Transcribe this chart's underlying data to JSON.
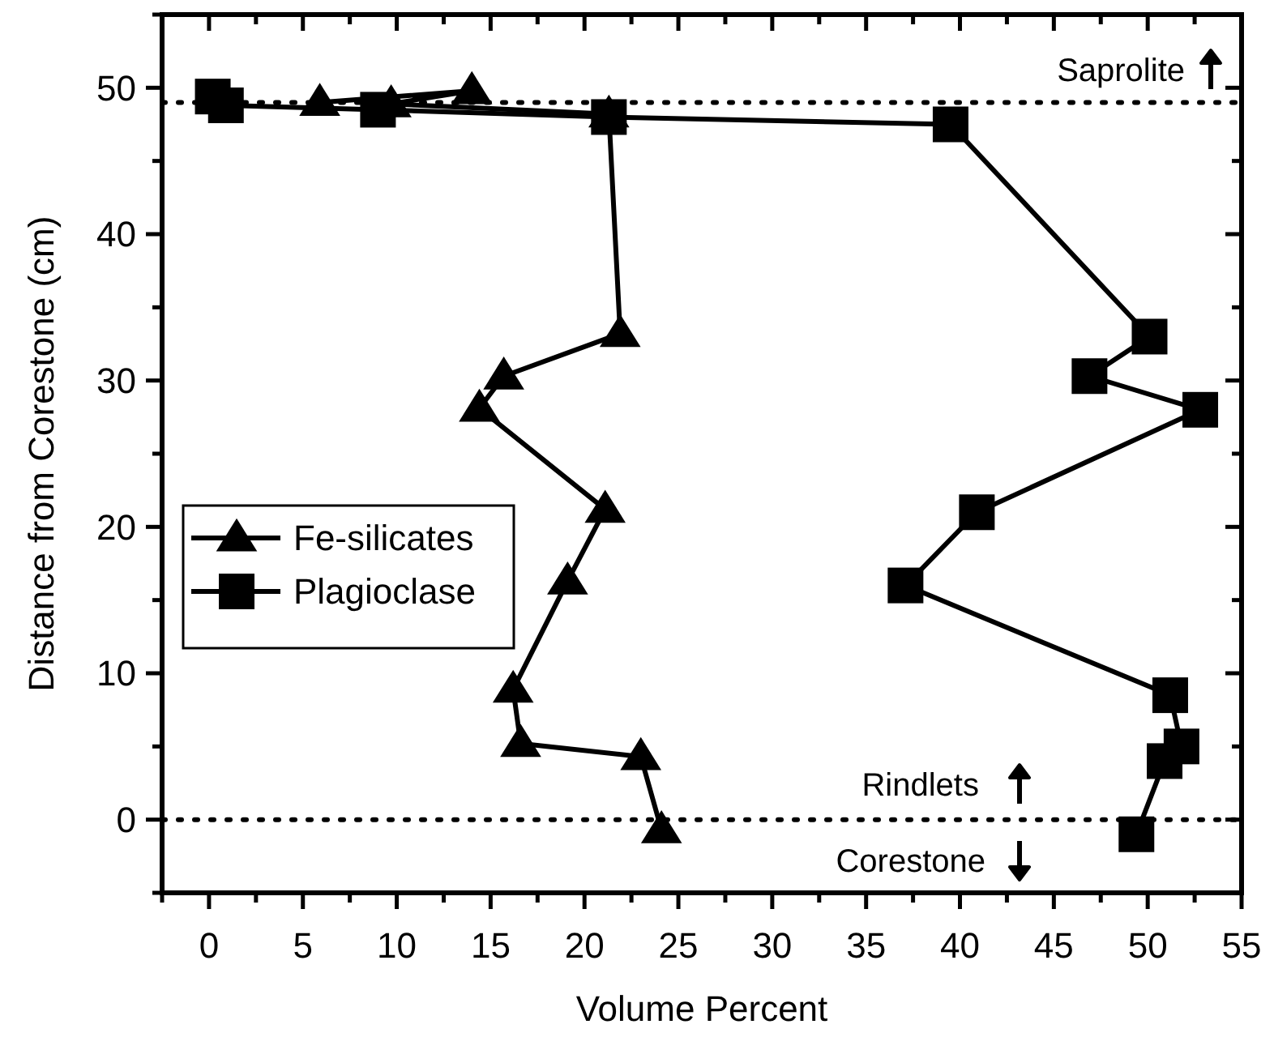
{
  "chart_data": {
    "type": "line",
    "xlabel": "Volume Percent",
    "ylabel": "Distance from Corestone (cm)",
    "xlim": [
      -2.5,
      55
    ],
    "ylim": [
      -5,
      55
    ],
    "xticks": [
      {
        "value": -2.5,
        "label": null
      },
      0,
      {
        "value": 2.5,
        "label": null
      },
      5,
      {
        "value": 7.5,
        "label": null
      },
      10,
      {
        "value": 12.5,
        "label": null
      },
      15,
      {
        "value": 17.5,
        "label": null
      },
      20,
      {
        "value": 22.5,
        "label": null
      },
      25,
      {
        "value": 27.5,
        "label": null
      },
      30,
      {
        "value": 32.5,
        "label": null
      },
      35,
      {
        "value": 37.5,
        "label": null
      },
      40,
      {
        "value": 42.5,
        "label": null
      },
      45,
      {
        "value": 47.5,
        "label": null
      },
      50,
      {
        "value": 52.5,
        "label": null
      },
      55
    ],
    "yticks": [
      {
        "value": -5,
        "label": null
      },
      0,
      {
        "value": 5,
        "label": null
      },
      10,
      {
        "value": 15,
        "label": null
      },
      20,
      {
        "value": 25,
        "label": null
      },
      30,
      {
        "value": 35,
        "label": null
      },
      40,
      {
        "value": 45,
        "label": null
      },
      50,
      {
        "value": 55,
        "label": null
      }
    ],
    "grid": false,
    "legend": "left",
    "line_style": "solid",
    "series": [
      {
        "name": "Fe-silicates",
        "color": "#000000",
        "marker": "triangle",
        "x": [
          5.9,
          14.0,
          9.7,
          21.3,
          21.9,
          15.7,
          14.4,
          21.1,
          19.1,
          16.2,
          16.6,
          23.0,
          24.1
        ],
        "values": [
          49.0,
          49.8,
          48.9,
          48.2,
          33.2,
          30.3,
          28.1,
          21.2,
          16.3,
          8.9,
          5.2,
          4.3,
          -0.7
        ]
      },
      {
        "name": "Plagioclase",
        "color": "#000000",
        "marker": "square",
        "x": [
          0.2,
          0.9,
          9.0,
          21.3,
          39.5,
          50.1,
          46.9,
          52.8,
          40.9,
          37.1,
          51.2,
          51.8,
          50.9,
          49.4
        ],
        "values": [
          49.4,
          48.8,
          48.5,
          48.0,
          47.5,
          33.0,
          30.3,
          28.0,
          21.0,
          16.0,
          8.5,
          5.0,
          4.0,
          -1.0
        ]
      }
    ],
    "ref_lines": [
      {
        "axis": "y",
        "value": 49,
        "line_style": "dotted",
        "color": "#000000"
      },
      {
        "axis": "y",
        "value": 0,
        "line_style": "dotted",
        "color": "#000000"
      }
    ],
    "annotations": [
      "Saprolite",
      "Rindlets",
      "Corestone"
    ]
  }
}
